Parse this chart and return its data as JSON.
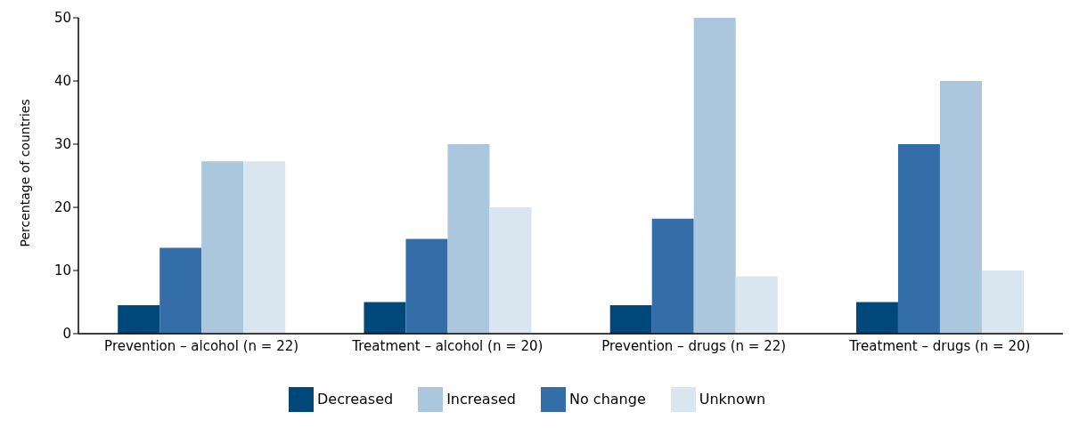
{
  "chart_data": {
    "type": "bar",
    "ylabel": "Percentage of countries",
    "categories": [
      "Prevention – alcohol (n = 22)",
      "Treatment – alcohol (n = 20)",
      "Prevention – drugs (n = 22)",
      "Treatment – drugs (n = 20)"
    ],
    "series": [
      {
        "name": "Decreased",
        "color": "#00477a",
        "values": [
          4.5,
          5,
          4.5,
          5
        ]
      },
      {
        "name": "No change",
        "color": "#336ea8",
        "values": [
          13.6,
          15,
          18.2,
          30
        ]
      },
      {
        "name": "Increased",
        "color": "#aac7dd",
        "values": [
          27.3,
          30,
          50,
          40
        ]
      },
      {
        "name": "Unknown",
        "color": "#d9e5ef",
        "values": [
          27.3,
          20,
          9.1,
          10
        ]
      }
    ],
    "ylim": [
      0,
      50
    ],
    "yticks": [
      0,
      10,
      20,
      30,
      40,
      50
    ],
    "grid": false,
    "legend": "bottom"
  }
}
